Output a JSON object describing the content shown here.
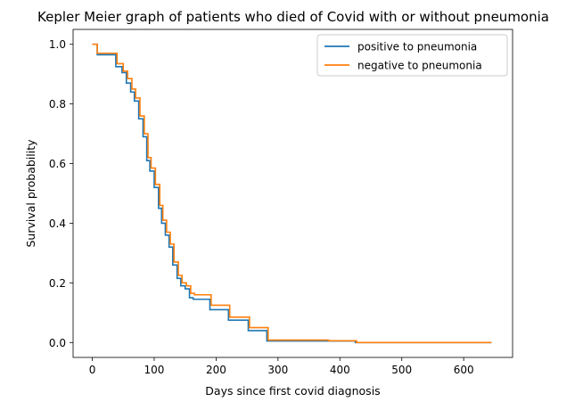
{
  "chart_data": {
    "type": "line",
    "title": "Kepler Meier graph of patients who died of Covid with or without pneumonia",
    "xlabel": "Days since first covid diagnosis",
    "ylabel": "Survival probability",
    "xlim": [
      -31,
      679
    ],
    "ylim": [
      -0.05,
      1.05
    ],
    "xticks": [
      0,
      100,
      200,
      300,
      400,
      500,
      600
    ],
    "yticks": [
      0.0,
      0.2,
      0.4,
      0.6,
      0.8,
      1.0
    ],
    "xtick_labels": [
      "0",
      "100",
      "200",
      "300",
      "400",
      "500",
      "600"
    ],
    "ytick_labels": [
      "0.0",
      "0.2",
      "0.4",
      "0.6",
      "0.8",
      "1.0"
    ],
    "grid": false,
    "legend_position": "upper right",
    "step": true,
    "series": [
      {
        "name": "positive to pneumonia",
        "color": "#1f77b4",
        "x": [
          0,
          8,
          38,
          48,
          55,
          62,
          68,
          75,
          82,
          88,
          93,
          100,
          107,
          112,
          118,
          124,
          130,
          137,
          143,
          150,
          157,
          163,
          170,
          190,
          220,
          252,
          282,
          380,
          425,
          645
        ],
        "y": [
          1.0,
          0.965,
          0.925,
          0.905,
          0.87,
          0.84,
          0.81,
          0.75,
          0.69,
          0.61,
          0.575,
          0.52,
          0.45,
          0.4,
          0.36,
          0.32,
          0.26,
          0.215,
          0.19,
          0.18,
          0.15,
          0.145,
          0.145,
          0.11,
          0.075,
          0.04,
          0.005,
          0.005,
          0.0,
          0.0
        ]
      },
      {
        "name": "negative to pneumonia",
        "color": "#ff7f0e",
        "x": [
          0,
          8,
          40,
          50,
          57,
          64,
          70,
          77,
          84,
          90,
          95,
          102,
          109,
          114,
          120,
          126,
          132,
          139,
          145,
          152,
          159,
          165,
          172,
          192,
          222,
          254,
          284,
          382,
          427,
          645
        ],
        "y": [
          1.0,
          0.97,
          0.935,
          0.91,
          0.885,
          0.85,
          0.82,
          0.76,
          0.7,
          0.62,
          0.585,
          0.53,
          0.46,
          0.41,
          0.37,
          0.33,
          0.27,
          0.225,
          0.2,
          0.19,
          0.165,
          0.16,
          0.16,
          0.125,
          0.085,
          0.05,
          0.008,
          0.006,
          0.0,
          0.0
        ]
      }
    ]
  }
}
